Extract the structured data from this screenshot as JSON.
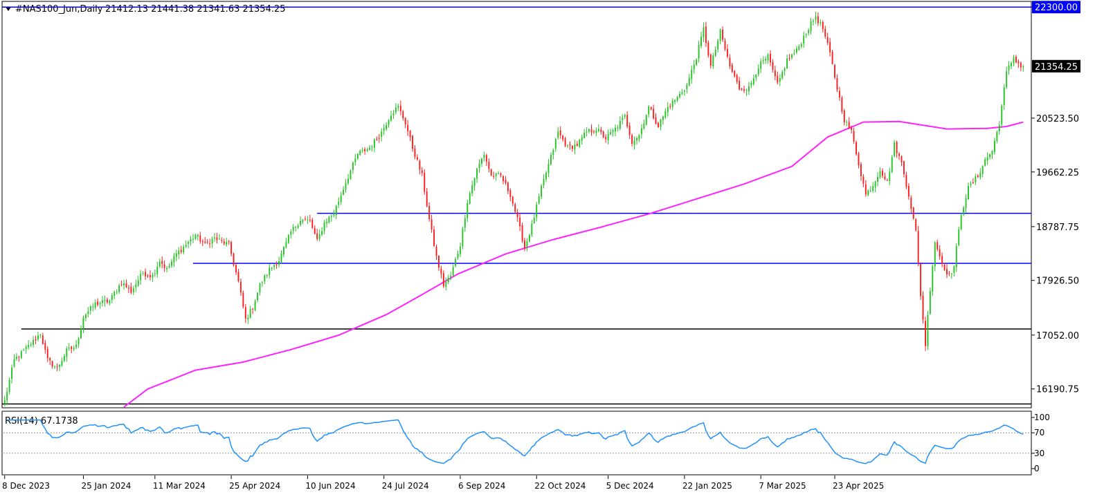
{
  "header": {
    "symbol": "#NAS100_Jun,Daily",
    "ohlc": "21412.13 21441.38 21341.63 21354.25"
  },
  "rsi_label": "RSI(14) 67.1738",
  "colors": {
    "bull": "#22c322",
    "bear": "#ff1a1a",
    "ma": "#ff22ff",
    "hline_blue": "#0000ff",
    "hline_black": "#000000",
    "rsi": "#1e90ff",
    "badge_blue": "#0000ff",
    "badge_dark": "#000000"
  },
  "chart_data": [
    {
      "type": "candlestick",
      "title": "#NAS100_Jun,Daily",
      "x_labels": [
        "8 Dec 2023",
        "25 Jan 2024",
        "11 Mar 2024",
        "25 Apr 2024",
        "10 Jun 2024",
        "24 Jul 2024",
        "6 Sep 2024",
        "22 Oct 2024",
        "5 Dec 2024",
        "22 Jan 2025",
        "7 Mar 2025",
        "23 Apr 2025"
      ],
      "y_ticks": [
        "22300.00",
        "20523.50",
        "19662.25",
        "18787.75",
        "17926.50",
        "17052.00",
        "16190.75"
      ],
      "last_price": "21354.25",
      "ylim": [
        15900,
        22380
      ],
      "anchors": [
        [
          0,
          16000
        ],
        [
          4,
          16650
        ],
        [
          12,
          16950
        ],
        [
          15,
          17080
        ],
        [
          18,
          16650
        ],
        [
          22,
          16520
        ],
        [
          26,
          16800
        ],
        [
          30,
          16870
        ],
        [
          33,
          17350
        ],
        [
          38,
          17550
        ],
        [
          44,
          17600
        ],
        [
          49,
          17900
        ],
        [
          53,
          17750
        ],
        [
          58,
          18050
        ],
        [
          62,
          18000
        ],
        [
          65,
          18250
        ],
        [
          68,
          18100
        ],
        [
          72,
          18350
        ],
        [
          76,
          18500
        ],
        [
          80,
          18650
        ],
        [
          84,
          18500
        ],
        [
          88,
          18600
        ],
        [
          94,
          18500
        ],
        [
          98,
          17900
        ],
        [
          101,
          17300
        ],
        [
          104,
          17500
        ],
        [
          107,
          17850
        ],
        [
          111,
          18100
        ],
        [
          115,
          18250
        ],
        [
          120,
          18700
        ],
        [
          124,
          18900
        ],
        [
          128,
          18880
        ],
        [
          131,
          18550
        ],
        [
          134,
          18850
        ],
        [
          138,
          19000
        ],
        [
          143,
          19500
        ],
        [
          148,
          19950
        ],
        [
          153,
          20050
        ],
        [
          158,
          20300
        ],
        [
          162,
          20600
        ],
        [
          165,
          20700
        ],
        [
          168,
          20450
        ],
        [
          171,
          20050
        ],
        [
          175,
          19600
        ],
        [
          178,
          18900
        ],
        [
          181,
          18300
        ],
        [
          184,
          17850
        ],
        [
          187,
          18000
        ],
        [
          191,
          18500
        ],
        [
          194,
          19200
        ],
        [
          198,
          19700
        ],
        [
          201,
          19950
        ],
        [
          204,
          19600
        ],
        [
          208,
          19600
        ],
        [
          212,
          19300
        ],
        [
          215,
          18900
        ],
        [
          218,
          18450
        ],
        [
          221,
          18800
        ],
        [
          225,
          19400
        ],
        [
          229,
          19900
        ],
        [
          232,
          20300
        ],
        [
          236,
          20050
        ],
        [
          240,
          20100
        ],
        [
          244,
          20300
        ],
        [
          248,
          20350
        ],
        [
          252,
          20200
        ],
        [
          256,
          20350
        ],
        [
          260,
          20550
        ],
        [
          263,
          20150
        ],
        [
          266,
          20250
        ],
        [
          270,
          20700
        ],
        [
          274,
          20400
        ],
        [
          278,
          20700
        ],
        [
          282,
          20850
        ],
        [
          286,
          21050
        ],
        [
          290,
          21500
        ],
        [
          293,
          21950
        ],
        [
          296,
          21350
        ],
        [
          300,
          21900
        ],
        [
          304,
          21350
        ],
        [
          308,
          21000
        ],
        [
          312,
          21000
        ],
        [
          316,
          21350
        ],
        [
          320,
          21500
        ],
        [
          324,
          21050
        ],
        [
          328,
          21450
        ],
        [
          332,
          21600
        ],
        [
          336,
          21900
        ],
        [
          340,
          22150
        ],
        [
          343,
          21950
        ],
        [
          346,
          21550
        ],
        [
          349,
          21000
        ],
        [
          352,
          20500
        ],
        [
          355,
          20300
        ],
        [
          358,
          19800
        ],
        [
          361,
          19300
        ],
        [
          364,
          19450
        ],
        [
          367,
          19700
        ],
        [
          370,
          19500
        ],
        [
          373,
          20100
        ],
        [
          376,
          19800
        ],
        [
          379,
          19300
        ],
        [
          382,
          18700
        ],
        [
          384,
          17700
        ],
        [
          386,
          16900
        ],
        [
          388,
          17800
        ],
        [
          390,
          18550
        ],
        [
          393,
          18200
        ],
        [
          396,
          18000
        ],
        [
          398,
          18150
        ],
        [
          401,
          19000
        ],
        [
          404,
          19400
        ],
        [
          408,
          19600
        ],
        [
          411,
          19850
        ],
        [
          414,
          20000
        ],
        [
          417,
          20450
        ],
        [
          420,
          21250
        ],
        [
          423,
          21500
        ],
        [
          426,
          21350
        ],
        [
          427,
          21354
        ]
      ]
    },
    {
      "type": "line",
      "name": "MA",
      "points": [
        [
          50,
          15900
        ],
        [
          60,
          16190
        ],
        [
          80,
          16490
        ],
        [
          100,
          16620
        ],
        [
          120,
          16820
        ],
        [
          140,
          17050
        ],
        [
          160,
          17380
        ],
        [
          175,
          17700
        ],
        [
          190,
          18030
        ],
        [
          210,
          18350
        ],
        [
          230,
          18580
        ],
        [
          250,
          18780
        ],
        [
          270,
          18990
        ],
        [
          290,
          19230
        ],
        [
          310,
          19470
        ],
        [
          330,
          19750
        ],
        [
          345,
          20220
        ],
        [
          360,
          20460
        ],
        [
          375,
          20470
        ],
        [
          395,
          20350
        ],
        [
          412,
          20360
        ],
        [
          420,
          20390
        ],
        [
          427,
          20460
        ]
      ]
    },
    {
      "type": "hlines",
      "levels": [
        {
          "value": 22300,
          "x_from": 0,
          "color": "blue"
        },
        {
          "value": 19000,
          "x_from": 131,
          "color": "blue"
        },
        {
          "value": 18200,
          "x_from": 79,
          "color": "blue"
        },
        {
          "value": 17150,
          "x_from": 7,
          "color": "black"
        },
        {
          "value": 15950,
          "x_from": 0,
          "color": "black"
        }
      ]
    },
    {
      "type": "line",
      "name": "RSI(14)",
      "y_ticks": [
        "100",
        "70",
        "30",
        "0"
      ],
      "levels": [
        70,
        30
      ],
      "ylim": [
        0,
        100
      ],
      "last_value": 67.1738
    }
  ]
}
